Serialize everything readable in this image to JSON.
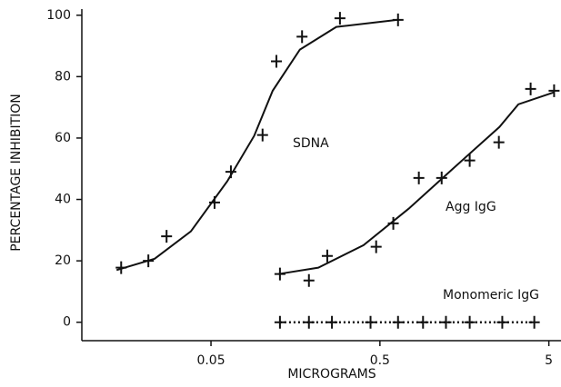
{
  "chart_data": {
    "type": "scatter",
    "xlabel": "MICROGRAMS",
    "ylabel": "PERCENTAGE INHIBITION",
    "xscale": "log",
    "xlim": [
      0.0086,
      5.9
    ],
    "xticks": [
      0.05,
      0.5,
      5
    ],
    "ylim": [
      -6,
      102
    ],
    "yticks": [
      0,
      20,
      40,
      60,
      80,
      100
    ],
    "series": [
      {
        "name": "SDNA",
        "color": "#111111",
        "line_style": "solid",
        "x": [
          0.0147,
          0.0213,
          0.0273,
          0.0525,
          0.0656,
          0.101,
          0.122,
          0.173,
          0.29,
          0.64
        ],
        "values": [
          17.8,
          20,
          28,
          39,
          49,
          61,
          85,
          93,
          99,
          98.5
        ],
        "curve_x": [
          0.0138,
          0.0232,
          0.038,
          0.0624,
          0.09,
          0.116,
          0.168,
          0.276,
          0.64
        ],
        "curve_values": [
          17,
          20.7,
          29.6,
          45.9,
          60.7,
          75.4,
          88.8,
          96.2,
          98.5
        ]
      },
      {
        "name": "Agg IgG",
        "color": "#111111",
        "line_style": "solid",
        "x": [
          0.128,
          0.19,
          0.244,
          0.475,
          0.6,
          0.85,
          1.16,
          1.7,
          2.53,
          3.9,
          5.37
        ],
        "values": [
          15.7,
          13.6,
          21.6,
          24.6,
          32.2,
          47,
          47,
          52.7,
          58.6,
          76,
          75.4
        ],
        "curve_x": [
          0.125,
          0.216,
          0.4,
          0.74,
          1.37,
          2.55,
          3.3,
          5.37
        ],
        "curve_values": [
          15.7,
          17.8,
          25.1,
          37,
          50.3,
          63.6,
          71,
          74.9
        ]
      },
      {
        "name": "Monomeric IgG",
        "color": "#111111",
        "line_style": "dotted",
        "x": [
          0.128,
          0.19,
          0.26,
          0.44,
          0.64,
          0.9,
          1.23,
          1.7,
          2.65,
          4.1
        ],
        "values": [
          0,
          0,
          0,
          0,
          0,
          0,
          0,
          0,
          0,
          0
        ],
        "curve_x": [
          0.128,
          4.1
        ],
        "curve_values": [
          0,
          0
        ]
      }
    ]
  }
}
